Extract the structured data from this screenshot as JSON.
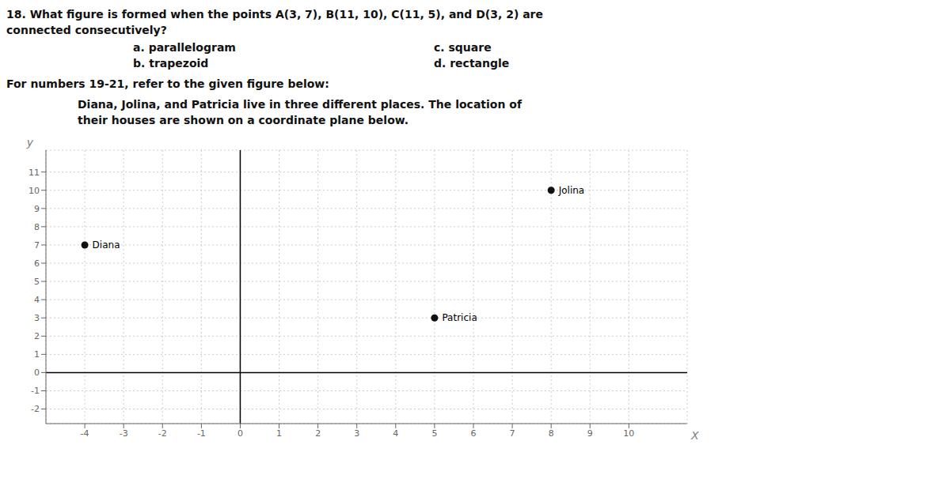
{
  "chart_data": {
    "type": "scatter",
    "title": [
      "18. What figure is formed when the points A(3, 7), B(11, 10), C(11, 5), and D(3, 2) are",
      "connected consecutively?"
    ],
    "annotations": [
      "a. parallelogram",
      "b. trapezoid",
      "c. square",
      "d. rectangle",
      "For numbers 19-21, refer to the given figure below:",
      "Diana, Jolina, and Patricia live in three different places. The location of",
      "their houses are shown on a coordinate plane below."
    ],
    "categories": [
      "Diana",
      "Jolina",
      "Patricia"
    ],
    "x": [
      -4,
      8,
      5
    ],
    "values": [
      7,
      10,
      3
    ],
    "color": "#111111",
    "x_label": "X",
    "y_label": "y",
    "xlim": [
      -5.0,
      11.5
    ],
    "ylim": [
      -2.8,
      12.2
    ],
    "xticks": [
      -4,
      -3,
      -2,
      -1,
      0,
      1,
      2,
      3,
      4,
      5,
      6,
      7,
      8,
      9,
      10
    ],
    "yticks": [
      -2,
      -1,
      0,
      1,
      2,
      3,
      4,
      5,
      6,
      7,
      8,
      9,
      10,
      11
    ],
    "grid": true
  }
}
